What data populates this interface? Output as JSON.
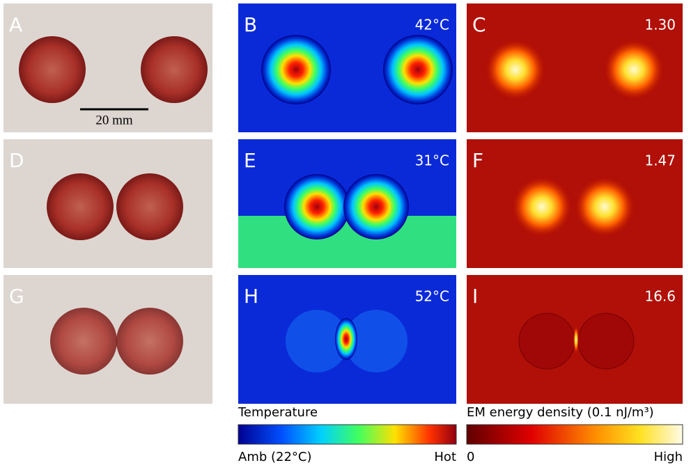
{
  "panels": [
    {
      "letter": "A"
    },
    {
      "letter": "B",
      "label": "42°C"
    },
    {
      "letter": "C",
      "label": "1.30"
    },
    {
      "letter": "D"
    },
    {
      "letter": "E",
      "label": "31°C"
    },
    {
      "letter": "F",
      "label": "1.47"
    },
    {
      "letter": "G"
    },
    {
      "letter": "H",
      "label": "52°C"
    },
    {
      "letter": "I",
      "label": "16.6"
    }
  ],
  "scale_bar": "20 mm",
  "temperature_legend": {
    "title": "Temperature",
    "min": "Amb (22°C)",
    "max": "Hot"
  },
  "em_legend": {
    "title": "EM energy density (0.1 nJ/m³)",
    "min": "0",
    "max": "High"
  }
}
